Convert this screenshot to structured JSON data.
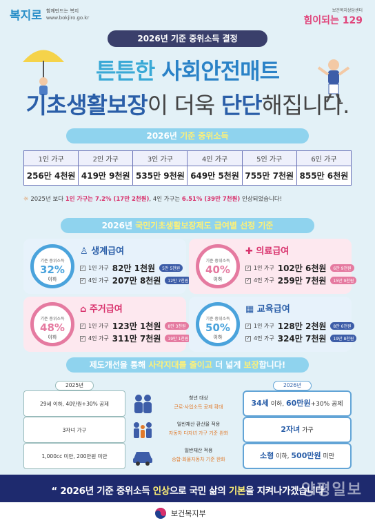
{
  "header": {
    "logo_left_mark": "복지로",
    "logo_left_tag": "함께만드는 복지",
    "logo_left_url": "www.bokjiro.go.kr",
    "logo_right_small": "보건복지상담센터",
    "logo_right_big": "힘이되는 129",
    "pill_title": "2026년 기준 중위소득 결정",
    "headline1_a": "튼튼한 ",
    "headline1_b": "사회안전매트",
    "headline2_a": "기초생활보장",
    "headline2_b": "이 더욱 ",
    "headline2_c": "단단",
    "headline2_d": "해집니다."
  },
  "income": {
    "section_title_a": "2026년 ",
    "section_title_b": "기준 중위소득",
    "columns": [
      {
        "label": "1인 가구",
        "value": "256만 4천원"
      },
      {
        "label": "2인 가구",
        "value": "419만 9천원"
      },
      {
        "label": "3인 가구",
        "value": "535만 9천원"
      },
      {
        "label": "4인 가구",
        "value": "649만 5천원"
      },
      {
        "label": "5인 가구",
        "value": "755만 7천원"
      },
      {
        "label": "6인 가구",
        "value": "855만 6천원"
      }
    ],
    "note_a": "2025년 보다 ",
    "note_b": "1인 가구는 7.2% (17만 2천원)",
    "note_c": ", 4인 가구는 ",
    "note_d": "6.51% (39만 7천원)",
    "note_e": " 인상되었습니다!"
  },
  "benefits": {
    "section_title_a": "2026년 ",
    "section_title_b": "국민기초생활보장제도 급여별 선정 기준",
    "cards": [
      {
        "title": "생계급여",
        "cap": "기준 중위소득",
        "pct": "32%",
        "below": "이하",
        "r1_label": "1인 가구",
        "r1_amt": "82만 1천원",
        "r1_tag": "5만 5천원",
        "r2_label": "4인 가구",
        "r2_amt": "207만 8천원",
        "r2_tag": "12만 7천원"
      },
      {
        "title": "의료급여",
        "cap": "기준 중위소득",
        "pct": "40%",
        "below": "이하",
        "r1_label": "1인 가구",
        "r1_amt": "102만 6천원",
        "r1_tag": "6만 9천원",
        "r2_label": "4인 가구",
        "r2_amt": "259만 7천원",
        "r2_tag": "15만 9천원"
      },
      {
        "title": "주거급여",
        "cap": "기준 중위소득",
        "pct": "48%",
        "below": "이하",
        "r1_label": "1인 가구",
        "r1_amt": "123만 1천원",
        "r1_tag": "8만 3천원",
        "r2_label": "4인 가구",
        "r2_amt": "311만 7천원",
        "r2_tag": "19만 1천원"
      },
      {
        "title": "교육급여",
        "cap": "기준 중위소득",
        "pct": "50%",
        "below": "이하",
        "r1_label": "1인 가구",
        "r1_amt": "128만 2천원",
        "r1_tag": "8만 6천원",
        "r2_label": "4인 가구",
        "r2_amt": "324만 7천원",
        "r2_tag": "19만 8천원"
      }
    ]
  },
  "reform": {
    "section_title_a": "제도개선을 통해 ",
    "section_title_b": "사각지대를 줄이고",
    "section_title_c": " 더 넓게 ",
    "section_title_d": "보장",
    "section_title_e": "합니다!",
    "year_old": "2025년",
    "year_new": "2026년",
    "rows": [
      {
        "before": "29세 이하, 40만원+30% 공제",
        "mid_a": "청년 대상",
        "mid_b": "근로·사업소득 공제 확대",
        "after_a": "34세",
        "after_b": " 이하, ",
        "after_c": "60만원",
        "after_d": "+30% 공제"
      },
      {
        "before": "3자녀 가구",
        "mid_a": "일반재산 환산율 적용",
        "mid_b": "자동차 다자녀 가구 기준 완화",
        "after_a": "2자녀",
        "after_b": " 가구",
        "after_c": "",
        "after_d": ""
      },
      {
        "before": "1,000cc 미만, 200만원 미만",
        "mid_a": "일반재산 적용",
        "mid_b": "승합·화물자동차 기준 완화",
        "after_a": "소형",
        "after_b": " 이하, ",
        "after_c": "500만원",
        "after_d": " 미만"
      }
    ]
  },
  "footer": {
    "slogan_a": "2026년 기준 중위소득 ",
    "slogan_b": "인상",
    "slogan_c": "으로 국민 삶의 ",
    "slogan_d": "기본",
    "slogan_e": "을 지켜나가겠습니다",
    "ministry": "보건복지부",
    "watermark": "양평일보"
  },
  "colors": {
    "bg": "#e3f1f7",
    "navy": "#1e2a6e",
    "sky": "#8fd3ee",
    "blue_circle": "#4aa3dc",
    "pink_circle": "#e57aa0",
    "pink_card": "#fde8ef",
    "blue_card": "#e7f2fb"
  }
}
